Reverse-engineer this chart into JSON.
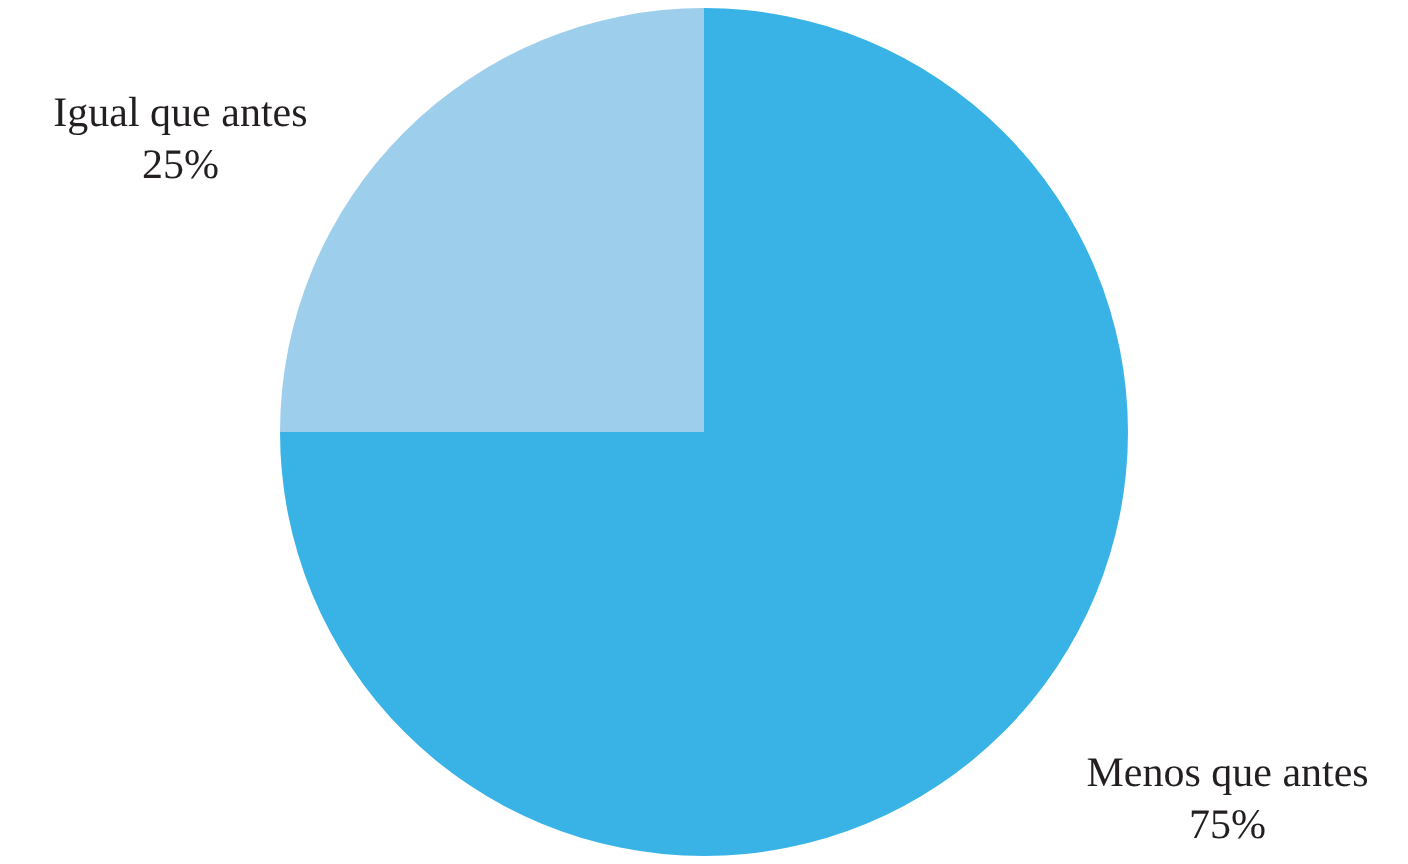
{
  "chart_data": {
    "type": "pie",
    "categories": [
      "Menos que antes",
      "Igual que antes"
    ],
    "values": [
      75,
      25
    ],
    "colors": [
      "#39b3e6",
      "#9dcfed"
    ],
    "value_labels": [
      "75%",
      "25%"
    ]
  }
}
